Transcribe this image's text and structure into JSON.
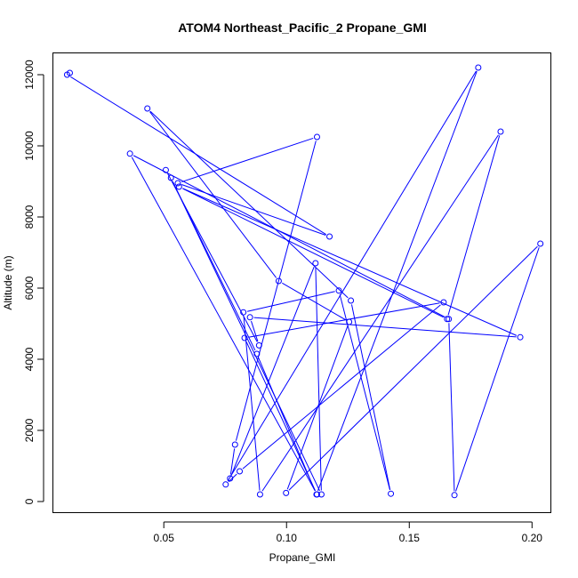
{
  "chart_data": {
    "type": "line",
    "title": "ATOM4 Northeast_Pacific_2 Propane_GMI",
    "xlabel": "Propane_GMI",
    "ylabel": "Altitude (m)",
    "xlim": [
      0.005,
      0.2075
    ],
    "ylim": [
      -300,
      12600
    ],
    "xticks": [
      0.05,
      0.1,
      0.15,
      0.2
    ],
    "xtick_labels": [
      "0.05",
      "0.10",
      "0.15",
      "0.20"
    ],
    "yticks": [
      0,
      2000,
      4000,
      6000,
      8000,
      10000,
      12000
    ],
    "ytick_labels": [
      "0",
      "2000",
      "4000",
      "6000",
      "8000",
      "10000",
      "12000"
    ],
    "grid": false,
    "series_color": "#0000ff",
    "marker": "open-circle",
    "series": [
      {
        "x": [
          0.0117,
          0.0106,
          0.1175,
          0.0557,
          0.1124,
          0.079,
          0.077,
          0.1118,
          0.1142,
          0.0529,
          0.0879,
          0.1122,
          0.1781,
          0.0752,
          0.0809,
          0.164,
          0.0829,
          0.1124,
          0.0362,
          0.1661,
          0.1684,
          0.2034,
          0.0998,
          0.1255,
          0.0968,
          0.0433,
          0.1262,
          0.1425,
          0.1213,
          0.0824,
          0.0892,
          0.1872,
          0.1654,
          0.0562,
          0.1952,
          0.0851,
          0.0888,
          0.0508
        ],
        "y": [
          12050,
          12000,
          7450,
          8950,
          10250,
          1600,
          650,
          6700,
          200,
          9100,
          4150,
          200,
          12200,
          480,
          850,
          5600,
          4600,
          200,
          9780,
          5130,
          180,
          7250,
          240,
          5050,
          6200,
          11050,
          5650,
          220,
          5930,
          5320,
          200,
          10400,
          5130,
          8850,
          4620,
          5180,
          4390,
          9320
        ]
      }
    ]
  }
}
